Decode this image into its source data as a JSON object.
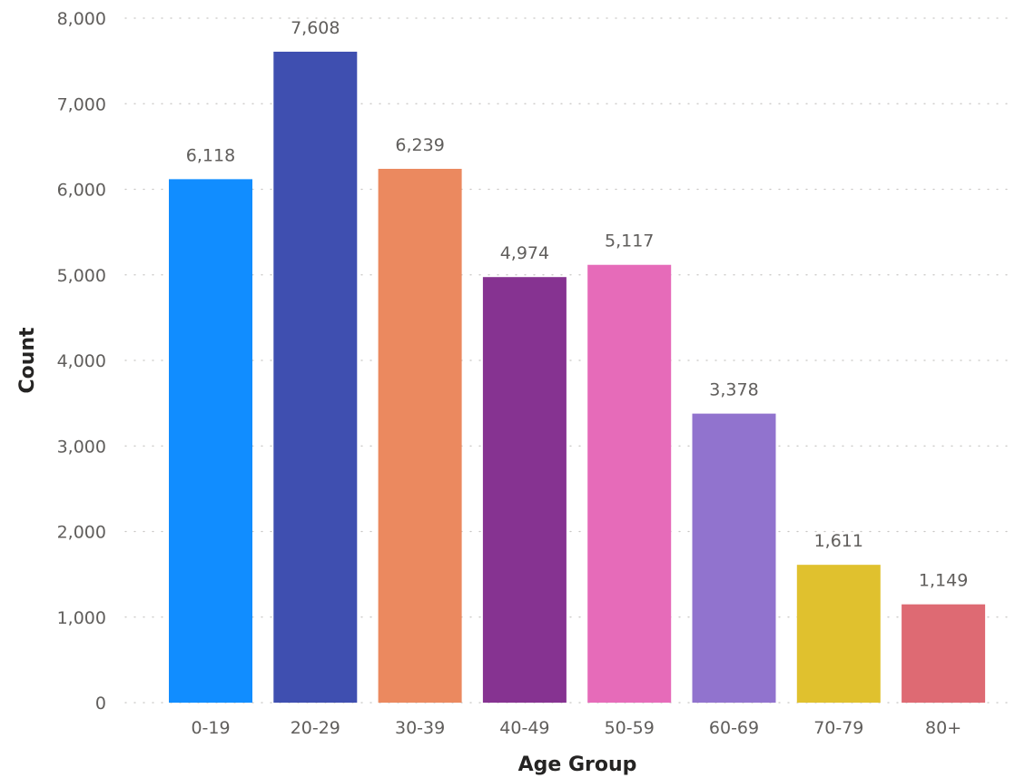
{
  "chart_data": {
    "type": "bar",
    "xlabel": "Age Group",
    "ylabel": "Count",
    "categories": [
      "0-19",
      "20-29",
      "30-39",
      "40-49",
      "50-59",
      "60-69",
      "70-79",
      "80+"
    ],
    "values": [
      6118,
      7608,
      6239,
      4974,
      5117,
      3378,
      1611,
      1149
    ],
    "value_labels": [
      "6,118",
      "7,608",
      "6,239",
      "4,974",
      "5,117",
      "3,378",
      "1,611",
      "1,149"
    ],
    "colors": [
      "#118DFF",
      "#3F4FB0",
      "#EB895F",
      "#863391",
      "#E66BB9",
      "#9173CE",
      "#E0C12E",
      "#DE6A73"
    ],
    "ylim": [
      0,
      8000
    ],
    "yticks": [
      0,
      1000,
      2000,
      3000,
      4000,
      5000,
      6000,
      7000,
      8000
    ],
    "ytick_labels": [
      "0",
      "1,000",
      "2,000",
      "3,000",
      "4,000",
      "5,000",
      "6,000",
      "7,000",
      "8,000"
    ],
    "grid": true,
    "legend": "none"
  }
}
